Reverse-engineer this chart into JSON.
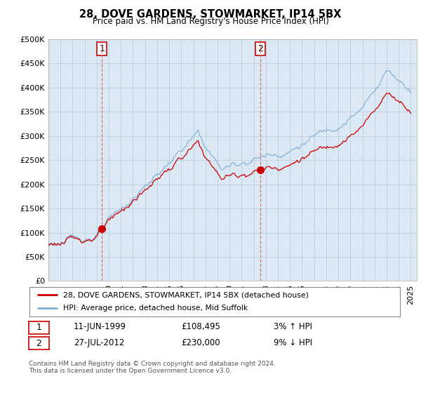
{
  "title": "28, DOVE GARDENS, STOWMARKET, IP14 5BX",
  "subtitle": "Price paid vs. HM Land Registry's House Price Index (HPI)",
  "background_color": "#ffffff",
  "plot_bg_color": "#dce9f5",
  "grid_color": "#b8cfe0",
  "sale1_date": "11-JUN-1999",
  "sale1_price": 108495,
  "sale2_date": "27-JUL-2012",
  "sale2_price": 230000,
  "sale1_hpi_diff": "3% ↑ HPI",
  "sale2_hpi_diff": "9% ↓ HPI",
  "legend_line1": "28, DOVE GARDENS, STOWMARKET, IP14 5BX (detached house)",
  "legend_line2": "HPI: Average price, detached house, Mid Suffolk",
  "footer": "Contains HM Land Registry data © Crown copyright and database right 2024.\nThis data is licensed under the Open Government Licence v3.0.",
  "line_color_property": "#cc0000",
  "line_color_hpi": "#7eadd4",
  "vline_color": "#cc6666",
  "ylim": [
    0,
    500000
  ],
  "yticks": [
    0,
    50000,
    100000,
    150000,
    200000,
    250000,
    300000,
    350000,
    400000,
    450000,
    500000
  ],
  "sale1_x_year": 1999.44,
  "sale2_x_year": 2012.56,
  "xmin": 1995.0,
  "xmax": 2025.5
}
